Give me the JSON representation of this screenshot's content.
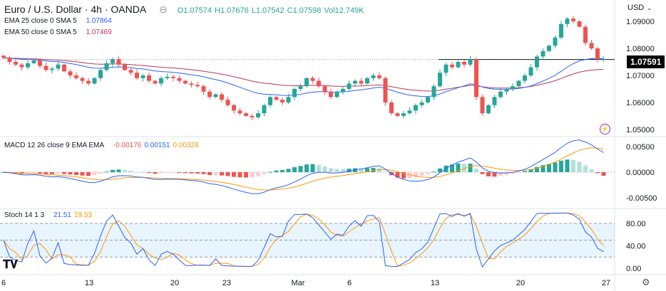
{
  "header": {
    "title": "Euro / U.S. Dollar · 4h · OANDA",
    "o_label": "O",
    "o": "1.07574",
    "h_label": "H",
    "h": "1.07676",
    "l_label": "L",
    "l": "1.07542",
    "c_label": "C",
    "c": "1.07598",
    "vol_label": "Vol",
    "vol": "12.749K",
    "currency": "USD"
  },
  "indicators": {
    "ema25": {
      "label": "EMA 25 close 0 SMA 5",
      "value": "1.07864",
      "color": "#2962ff"
    },
    "ema50": {
      "label": "EMA 50 close 0 SMA 5",
      "value": "1.07469",
      "color": "#b2385a"
    },
    "macd": {
      "label": "MACD 12 26 close 9 EMA EMA",
      "hist": "-0.00176",
      "macd": "0.00151",
      "signal": "0.00328"
    },
    "stoch": {
      "label": "Stoch 14 1 3",
      "k": "21.51",
      "d": "19.53"
    }
  },
  "colors": {
    "up": "#26a69a",
    "down": "#ef5350",
    "macd": "#2962ff",
    "signal": "#ff9800",
    "stoch_k": "#2962ff",
    "stoch_d": "#ff9800"
  },
  "chart_data": [
    {
      "type": "candlestick",
      "title": "Euro / U.S. Dollar · 4h · OANDA",
      "price_axis": [
        "1.09000",
        "1.08000",
        "1.07000",
        "1.06000",
        "1.05000"
      ],
      "ylim": [
        1.05,
        1.09
      ],
      "current_price": "1.07591",
      "horizontal_line": 1.0759,
      "x_ticks": [
        "6",
        "13",
        "20",
        "23",
        "Mar",
        "6",
        "13",
        "20",
        "27"
      ],
      "closes": [
        1.0765,
        1.075,
        1.074,
        1.073,
        1.0745,
        1.0755,
        1.0735,
        1.072,
        1.0725,
        1.074,
        1.0715,
        1.07,
        1.069,
        1.068,
        1.067,
        1.069,
        1.072,
        1.0745,
        1.076,
        1.074,
        1.072,
        1.071,
        1.069,
        1.07,
        1.068,
        1.067,
        1.069,
        1.0695,
        1.069,
        1.068,
        1.067,
        1.0665,
        1.066,
        1.064,
        1.062,
        1.063,
        1.061,
        1.059,
        1.057,
        1.056,
        1.055,
        1.0545,
        1.056,
        1.059,
        1.062,
        1.061,
        1.06,
        1.062,
        1.065,
        1.066,
        1.069,
        1.068,
        1.066,
        1.064,
        1.062,
        1.064,
        1.065,
        1.067,
        1.068,
        1.067,
        1.069,
        1.07,
        1.069,
        1.06,
        1.056,
        1.055,
        1.056,
        1.057,
        1.059,
        1.06,
        1.062,
        1.066,
        1.071,
        1.074,
        1.073,
        1.075,
        1.074,
        1.076,
        1.062,
        1.056,
        1.059,
        1.062,
        1.064,
        1.065,
        1.066,
        1.068,
        1.07,
        1.073,
        1.077,
        1.079,
        1.081,
        1.084,
        1.089,
        1.091,
        1.09,
        1.088,
        1.082,
        1.08,
        1.076,
        1.076
      ]
    },
    {
      "type": "line",
      "title": "MACD 12 26 close 9 EMA EMA",
      "axis": [
        "0.00500",
        "0.00000",
        "-0.00500"
      ],
      "ylim": [
        -0.005,
        0.005
      ]
    },
    {
      "type": "line",
      "title": "Stoch 14 1 3",
      "axis": [
        "80.00",
        "40.00",
        "0.00"
      ],
      "ylim": [
        0,
        100
      ],
      "band": [
        20,
        80
      ]
    }
  ]
}
